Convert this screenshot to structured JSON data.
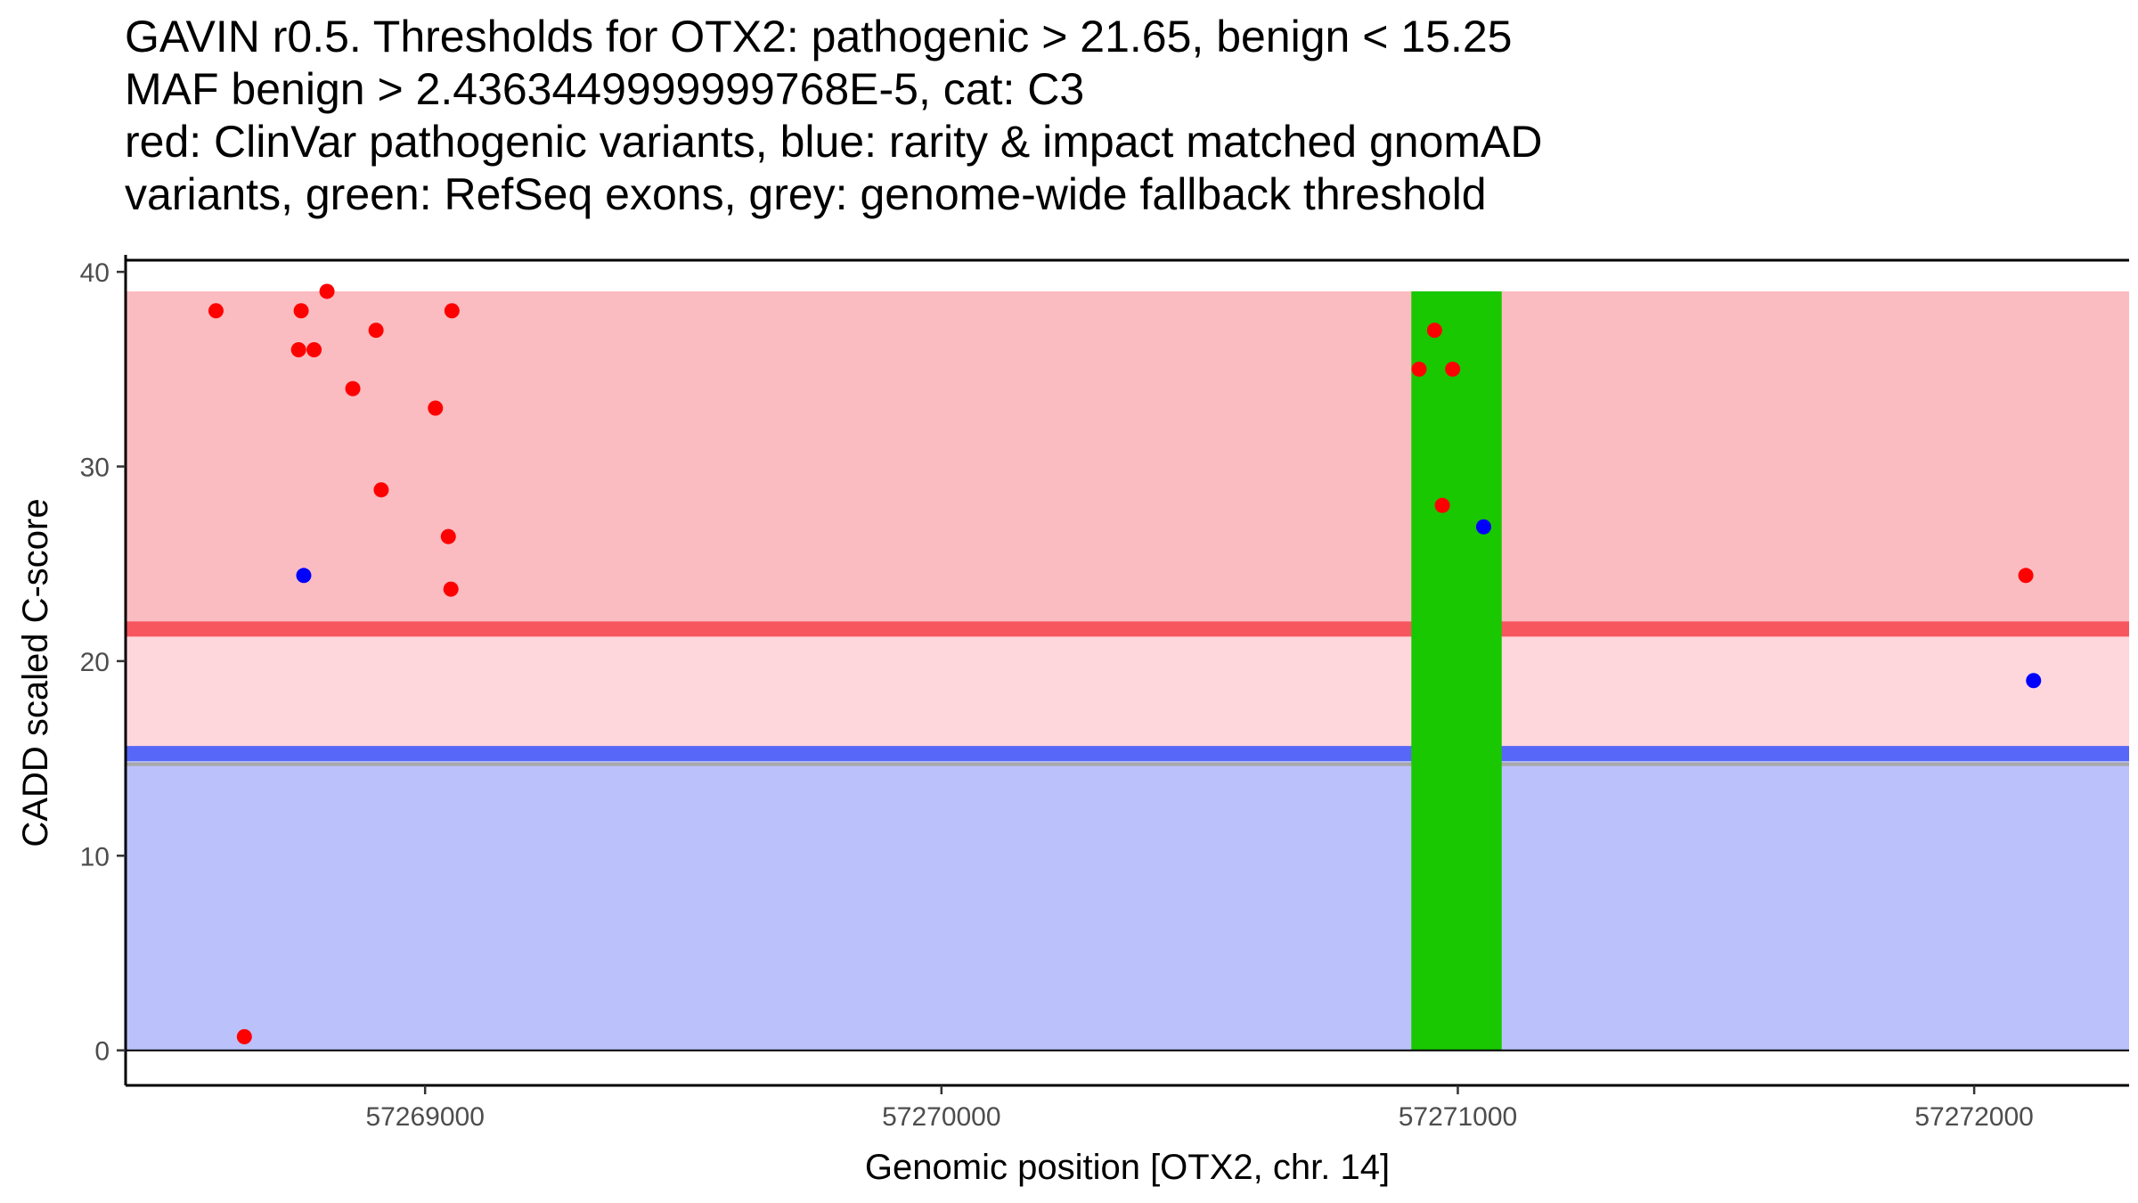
{
  "chart_data": {
    "type": "scatter",
    "title_lines": [
      "GAVIN r0.5. Thresholds for OTX2: pathogenic > 21.65, benign < 15.25",
      "MAF benign > 2.4363449999999768E-5, cat: C3",
      "red: ClinVar pathogenic variants, blue: rarity & impact matched gnomAD",
      "variants, green: RefSeq exons, grey: genome-wide fallback threshold"
    ],
    "xlabel": "Genomic position [OTX2, chr. 14]",
    "ylabel": "CADD scaled C-score",
    "xlim": [
      57268420,
      57272300
    ],
    "ylim": [
      -1.8,
      40.6
    ],
    "x_ticks": [
      {
        "value": 57269000,
        "label": "57269000"
      },
      {
        "value": 57270000,
        "label": "57270000"
      },
      {
        "value": 57271000,
        "label": "57271000"
      },
      {
        "value": 57272000,
        "label": "57272000"
      }
    ],
    "y_ticks": [
      {
        "value": 0,
        "label": "0"
      },
      {
        "value": 10,
        "label": "10"
      },
      {
        "value": 20,
        "label": "20"
      },
      {
        "value": 30,
        "label": "30"
      },
      {
        "value": 40,
        "label": "40"
      }
    ],
    "regions": [
      {
        "name": "pathogenic-zone",
        "y0": 21.65,
        "y1": 39,
        "color": "#fbbcc1"
      },
      {
        "name": "grey-zone",
        "y0": 15.25,
        "y1": 21.65,
        "color": "#fdd7dc"
      },
      {
        "name": "benign-zone",
        "y0": 0,
        "y1": 15.25,
        "color": "#bbc1fb"
      }
    ],
    "threshold_lines": [
      {
        "name": "pathogenic-threshold",
        "y": 21.65,
        "color": "#f7565f"
      },
      {
        "name": "benign-threshold",
        "y": 15.25,
        "color": "#5767f7"
      },
      {
        "name": "genome-wide-fallback",
        "y": 14.7,
        "color": "#a8a8a8"
      }
    ],
    "exons": [
      {
        "start": 57270910,
        "end": 57271085,
        "color": "#19c800"
      }
    ],
    "series": [
      {
        "name": "ClinVar pathogenic variants",
        "color": "#ff0000",
        "points": [
          {
            "x": 57268595,
            "y": 38
          },
          {
            "x": 57268650,
            "y": 0.7
          },
          {
            "x": 57268755,
            "y": 36
          },
          {
            "x": 57268760,
            "y": 38
          },
          {
            "x": 57268785,
            "y": 36
          },
          {
            "x": 57268810,
            "y": 39
          },
          {
            "x": 57268860,
            "y": 34
          },
          {
            "x": 57268905,
            "y": 37
          },
          {
            "x": 57268915,
            "y": 28.8
          },
          {
            "x": 57269020,
            "y": 33
          },
          {
            "x": 57269045,
            "y": 26.4
          },
          {
            "x": 57269050,
            "y": 23.7
          },
          {
            "x": 57269052,
            "y": 38
          },
          {
            "x": 57270925,
            "y": 35
          },
          {
            "x": 57270955,
            "y": 37
          },
          {
            "x": 57270970,
            "y": 28
          },
          {
            "x": 57270990,
            "y": 35
          },
          {
            "x": 57272100,
            "y": 24.4
          }
        ]
      },
      {
        "name": "rarity & impact matched gnomAD variants",
        "color": "#0000ff",
        "points": [
          {
            "x": 57268765,
            "y": 24.4
          },
          {
            "x": 57271050,
            "y": 26.9
          },
          {
            "x": 57272115,
            "y": 19
          }
        ]
      }
    ]
  }
}
